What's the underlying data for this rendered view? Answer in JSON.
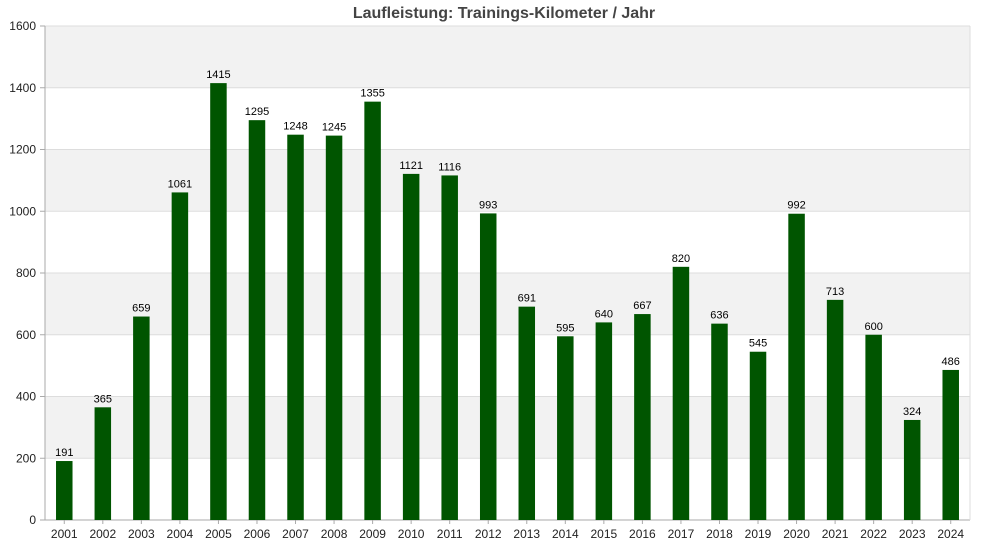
{
  "chart_data": {
    "type": "bar",
    "title": "Laufleistung: Trainings-Kilometer / Jahr",
    "xlabel": "",
    "ylabel": "",
    "categories": [
      "2001",
      "2002",
      "2003",
      "2004",
      "2005",
      "2006",
      "2007",
      "2008",
      "2009",
      "2010",
      "2011",
      "2012",
      "2013",
      "2014",
      "2015",
      "2016",
      "2017",
      "2018",
      "2019",
      "2020",
      "2021",
      "2022",
      "2023",
      "2024"
    ],
    "values": [
      191,
      365,
      659,
      1061,
      1415,
      1295,
      1248,
      1245,
      1355,
      1121,
      1116,
      993,
      691,
      595,
      640,
      667,
      820,
      636,
      545,
      992,
      713,
      600,
      324,
      486
    ],
    "ylim": [
      0,
      1600
    ],
    "yticks": [
      0,
      200,
      400,
      600,
      800,
      1000,
      1200,
      1400,
      1600
    ],
    "grid": true,
    "legend": "none",
    "colors": {
      "bar": "#005500",
      "band_alt": "#f2f2f2",
      "band": "#ffffff",
      "gridline": "#dddddd",
      "axis": "#aaaaaa"
    }
  }
}
